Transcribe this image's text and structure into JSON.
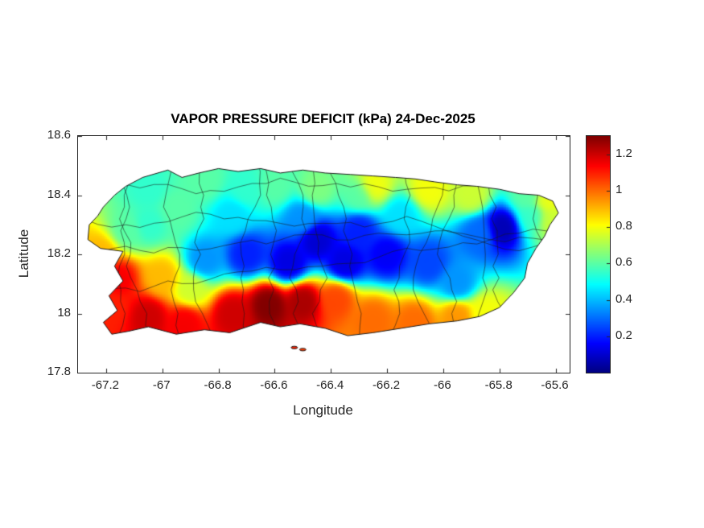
{
  "chart_data": {
    "type": "heatmap",
    "title": "VAPOR PRESSURE DEFICIT (kPa) 24-Dec-2025",
    "xlabel": "Longitude",
    "ylabel": "Latitude",
    "xlim": [
      -67.3,
      -65.55
    ],
    "ylim": [
      17.8,
      18.6
    ],
    "xticks": [
      -67.2,
      -67.0,
      -66.8,
      -66.6,
      -66.4,
      -66.2,
      -66.0,
      -65.8,
      -65.6
    ],
    "xtick_labels": [
      "-67.2",
      "-67",
      "-66.8",
      "-66.6",
      "-66.4",
      "-66.2",
      "-66",
      "-65.8",
      "-65.6"
    ],
    "yticks": [
      18.6,
      18.4,
      18.2,
      18.0,
      17.8
    ],
    "ytick_labels": [
      "18.6",
      "18.4",
      "18.2",
      "18",
      "17.8"
    ],
    "grid": false,
    "colorbar": {
      "colormap": "jet",
      "range": [
        0,
        1.3
      ],
      "ticks": [
        0.2,
        0.4,
        0.6,
        0.8,
        1.0,
        1.2
      ],
      "tick_labels": [
        "0.2",
        "0.4",
        "0.6",
        "0.8",
        "1",
        "1.2"
      ],
      "position": "right"
    },
    "units": "kPa",
    "samples": [
      [
        -67.16,
        18.12,
        1.15
      ],
      [
        -67.18,
        18.02,
        1.1
      ],
      [
        -67.05,
        17.99,
        1.2
      ],
      [
        -66.92,
        17.97,
        1.15
      ],
      [
        -67.22,
        18.2,
        0.9
      ],
      [
        -66.75,
        18.0,
        1.2
      ],
      [
        -66.62,
        18.03,
        1.3
      ],
      [
        -66.5,
        18.04,
        1.25
      ],
      [
        -66.38,
        18.05,
        1.05
      ],
      [
        -66.25,
        17.98,
        1.0
      ],
      [
        -66.1,
        17.97,
        1.0
      ],
      [
        -65.95,
        17.99,
        0.95
      ],
      [
        -65.85,
        18.0,
        0.8
      ],
      [
        -66.85,
        18.18,
        0.35
      ],
      [
        -66.7,
        18.2,
        0.2
      ],
      [
        -66.55,
        18.17,
        0.12
      ],
      [
        -66.45,
        18.25,
        0.1
      ],
      [
        -66.35,
        18.17,
        0.12
      ],
      [
        -66.2,
        18.2,
        0.15
      ],
      [
        -66.05,
        18.17,
        0.25
      ],
      [
        -66.5,
        18.32,
        0.35
      ],
      [
        -65.95,
        18.1,
        0.35
      ],
      [
        -66.3,
        18.28,
        0.2
      ],
      [
        -65.79,
        18.29,
        0.06
      ],
      [
        -65.87,
        18.27,
        0.3
      ],
      [
        -67.05,
        18.42,
        0.55
      ],
      [
        -66.85,
        18.45,
        0.6
      ],
      [
        -66.6,
        18.43,
        0.6
      ],
      [
        -66.45,
        18.42,
        0.65
      ],
      [
        -66.25,
        18.43,
        0.8
      ],
      [
        -66.05,
        18.42,
        0.8
      ],
      [
        -65.9,
        18.4,
        0.75
      ],
      [
        -65.7,
        18.4,
        0.6
      ],
      [
        -65.62,
        18.32,
        0.75
      ],
      [
        -65.63,
        18.38,
        0.8
      ],
      [
        -67.05,
        18.3,
        0.55
      ],
      [
        -66.95,
        18.35,
        0.6
      ],
      [
        -67.12,
        18.28,
        0.6
      ],
      [
        -66.75,
        18.33,
        0.45
      ],
      [
        -66.15,
        18.33,
        0.45
      ],
      [
        -65.68,
        18.33,
        0.55
      ],
      [
        -67.0,
        18.12,
        0.9
      ],
      [
        -66.7,
        18.42,
        0.55
      ],
      [
        -66.9,
        18.08,
        0.75
      ],
      [
        -66.3,
        18.4,
        0.6
      ]
    ],
    "coastline": [
      [
        -67.21,
        18.36
      ],
      [
        -67.17,
        18.4
      ],
      [
        -67.13,
        18.43
      ],
      [
        -67.07,
        18.46
      ],
      [
        -66.98,
        18.485
      ],
      [
        -66.93,
        18.46
      ],
      [
        -66.87,
        18.475
      ],
      [
        -66.8,
        18.49
      ],
      [
        -66.73,
        18.48
      ],
      [
        -66.65,
        18.49
      ],
      [
        -66.58,
        18.475
      ],
      [
        -66.5,
        18.485
      ],
      [
        -66.42,
        18.475
      ],
      [
        -66.33,
        18.47
      ],
      [
        -66.25,
        18.465
      ],
      [
        -66.17,
        18.46
      ],
      [
        -66.1,
        18.455
      ],
      [
        -66.03,
        18.445
      ],
      [
        -65.95,
        18.435
      ],
      [
        -65.88,
        18.43
      ],
      [
        -65.8,
        18.42
      ],
      [
        -65.73,
        18.405
      ],
      [
        -65.66,
        18.4
      ],
      [
        -65.61,
        18.38
      ],
      [
        -65.59,
        18.34
      ],
      [
        -65.62,
        18.3
      ],
      [
        -65.64,
        18.26
      ],
      [
        -65.67,
        18.22
      ],
      [
        -65.7,
        18.17
      ],
      [
        -65.71,
        18.12
      ],
      [
        -65.75,
        18.07
      ],
      [
        -65.8,
        18.02
      ],
      [
        -65.87,
        17.99
      ],
      [
        -65.95,
        17.975
      ],
      [
        -66.05,
        17.965
      ],
      [
        -66.15,
        17.95
      ],
      [
        -66.25,
        17.935
      ],
      [
        -66.34,
        17.925
      ],
      [
        -66.42,
        17.95
      ],
      [
        -66.51,
        17.965
      ],
      [
        -66.58,
        17.955
      ],
      [
        -66.65,
        17.97
      ],
      [
        -66.76,
        17.935
      ],
      [
        -66.85,
        17.945
      ],
      [
        -66.95,
        17.93
      ],
      [
        -67.05,
        17.955
      ],
      [
        -67.12,
        17.94
      ],
      [
        -67.18,
        17.93
      ],
      [
        -67.21,
        17.97
      ],
      [
        -67.16,
        18.01
      ],
      [
        -67.19,
        18.06
      ],
      [
        -67.14,
        18.11
      ],
      [
        -67.17,
        18.16
      ],
      [
        -67.14,
        18.21
      ],
      [
        -67.22,
        18.22
      ],
      [
        -67.265,
        18.25
      ],
      [
        -67.26,
        18.3
      ],
      [
        -67.23,
        18.33
      ]
    ],
    "islets": [
      [
        -66.53,
        17.885
      ],
      [
        -66.5,
        17.878
      ]
    ]
  }
}
